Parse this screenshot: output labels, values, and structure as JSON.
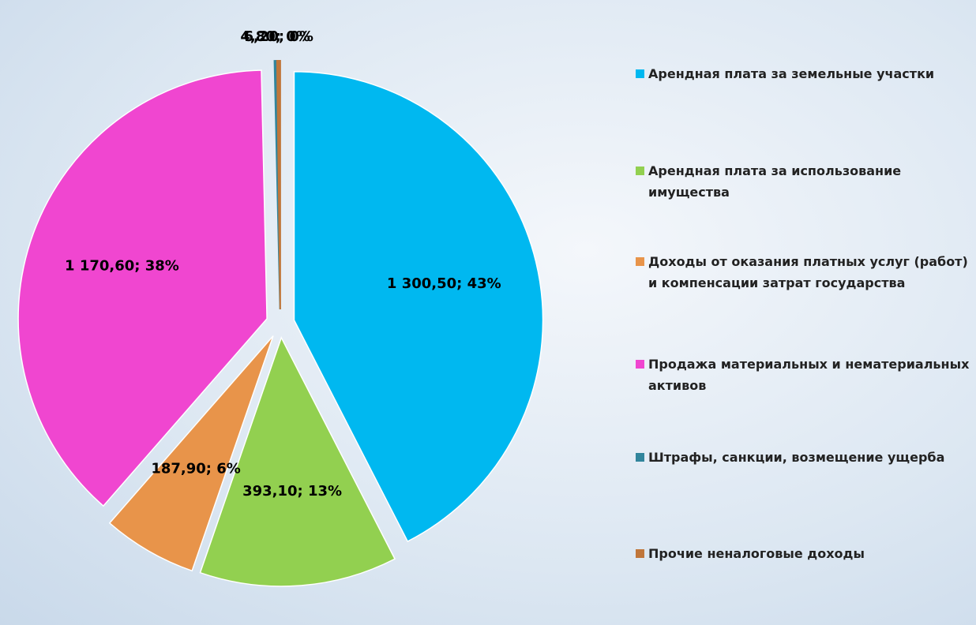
{
  "chart_data": {
    "type": "pie",
    "categories": [
      "Арендная плата за земельные участки",
      "Арендная плата за использование имущества",
      "Доходы от оказания платных услуг (работ)  и компенсации затрат государства",
      "Продажа материальных и нематериальных активов",
      "Штрафы, санкции, возмещение ущерба",
      "Прочие неналоговые доходы"
    ],
    "values": [
      1300.5,
      393.1,
      187.9,
      1170.6,
      4.8,
      6.2
    ],
    "value_labels": [
      "1 300,50; 43%",
      "393,10; 13%",
      "187,90; 6%",
      "1 170,60; 38%",
      "4,80; 0%",
      "6,20; 0%"
    ],
    "colors": [
      "#00b8f0",
      "#92d050",
      "#e8944a",
      "#f046d0",
      "#31859c",
      "#c0763a"
    ],
    "legend": "right"
  }
}
